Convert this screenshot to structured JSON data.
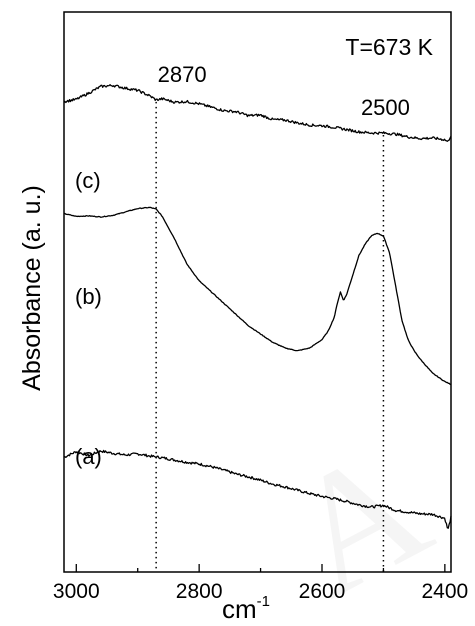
{
  "chart_data": {
    "type": "line",
    "title": "",
    "annotation": "T=673 K",
    "xlabel": "cm",
    "xlabel_sup": "-1",
    "ylabel": "Absorbance (a. u.)",
    "xlim": [
      3020,
      2390
    ],
    "x_reversed": true,
    "x_ticks": [
      3000,
      2800,
      2600,
      2400
    ],
    "y_ticks_labeled": false,
    "y_range": [
      0,
      100
    ],
    "grid": false,
    "legend": "none",
    "colors": {
      "line": "#000000",
      "background": "#ffffff"
    },
    "reference_lines": [
      {
        "x": 2870,
        "label": "2870"
      },
      {
        "x": 2500,
        "label": "2500"
      }
    ],
    "series": [
      {
        "name": "(a)",
        "x": [
          3020,
          3000,
          2980,
          2960,
          2940,
          2920,
          2900,
          2880,
          2860,
          2840,
          2820,
          2800,
          2780,
          2760,
          2740,
          2720,
          2700,
          2680,
          2660,
          2640,
          2620,
          2600,
          2580,
          2560,
          2540,
          2520,
          2500,
          2480,
          2460,
          2440,
          2420,
          2400,
          2395,
          2390
        ],
        "y": [
          20.5,
          21.5,
          20.8,
          21.6,
          21.2,
          20.9,
          21.1,
          20.7,
          20.4,
          20.0,
          19.6,
          19.3,
          18.8,
          18.2,
          17.5,
          17.0,
          16.4,
          15.7,
          15.2,
          14.6,
          14.0,
          13.5,
          13.1,
          12.6,
          12.0,
          11.6,
          11.9,
          11.0,
          10.7,
          10.4,
          10.3,
          9.6,
          7.5,
          9.8
        ]
      },
      {
        "name": "(b)",
        "x": [
          3020,
          3000,
          2980,
          2960,
          2940,
          2920,
          2900,
          2880,
          2870,
          2860,
          2840,
          2820,
          2800,
          2780,
          2760,
          2740,
          2720,
          2700,
          2680,
          2660,
          2640,
          2620,
          2600,
          2590,
          2580,
          2575,
          2570,
          2565,
          2560,
          2550,
          2540,
          2530,
          2520,
          2510,
          2500,
          2490,
          2480,
          2470,
          2460,
          2450,
          2440,
          2420,
          2400,
          2390
        ],
        "y": [
          64.0,
          63.5,
          63.6,
          63.4,
          63.7,
          64.3,
          64.9,
          65.1,
          64.8,
          63.5,
          59.5,
          55.0,
          52.0,
          50.0,
          48.0,
          46.0,
          44.0,
          42.5,
          41.0,
          40.0,
          39.5,
          40.0,
          41.5,
          43.0,
          45.5,
          48.0,
          50.0,
          48.5,
          49.5,
          53.0,
          56.5,
          58.5,
          60.0,
          60.5,
          60.0,
          57.0,
          51.0,
          45.0,
          41.5,
          39.5,
          38.0,
          35.5,
          34.0,
          33.5
        ]
      },
      {
        "name": "(c)",
        "x": [
          3020,
          3000,
          2980,
          2960,
          2940,
          2920,
          2900,
          2880,
          2870,
          2860,
          2840,
          2820,
          2800,
          2780,
          2760,
          2740,
          2720,
          2700,
          2680,
          2660,
          2640,
          2620,
          2600,
          2580,
          2560,
          2540,
          2520,
          2500,
          2480,
          2460,
          2440,
          2420,
          2400,
          2395,
          2390
        ],
        "y": [
          84.0,
          84.4,
          85.5,
          86.7,
          86.9,
          86.4,
          86.0,
          85.0,
          84.3,
          84.5,
          83.9,
          84.0,
          83.6,
          83.0,
          82.4,
          82.2,
          81.5,
          81.6,
          80.8,
          80.7,
          80.2,
          79.8,
          79.7,
          79.4,
          79.0,
          78.6,
          78.4,
          78.4,
          78.2,
          77.7,
          77.4,
          77.5,
          77.2,
          76.8,
          78.0
        ]
      }
    ]
  }
}
